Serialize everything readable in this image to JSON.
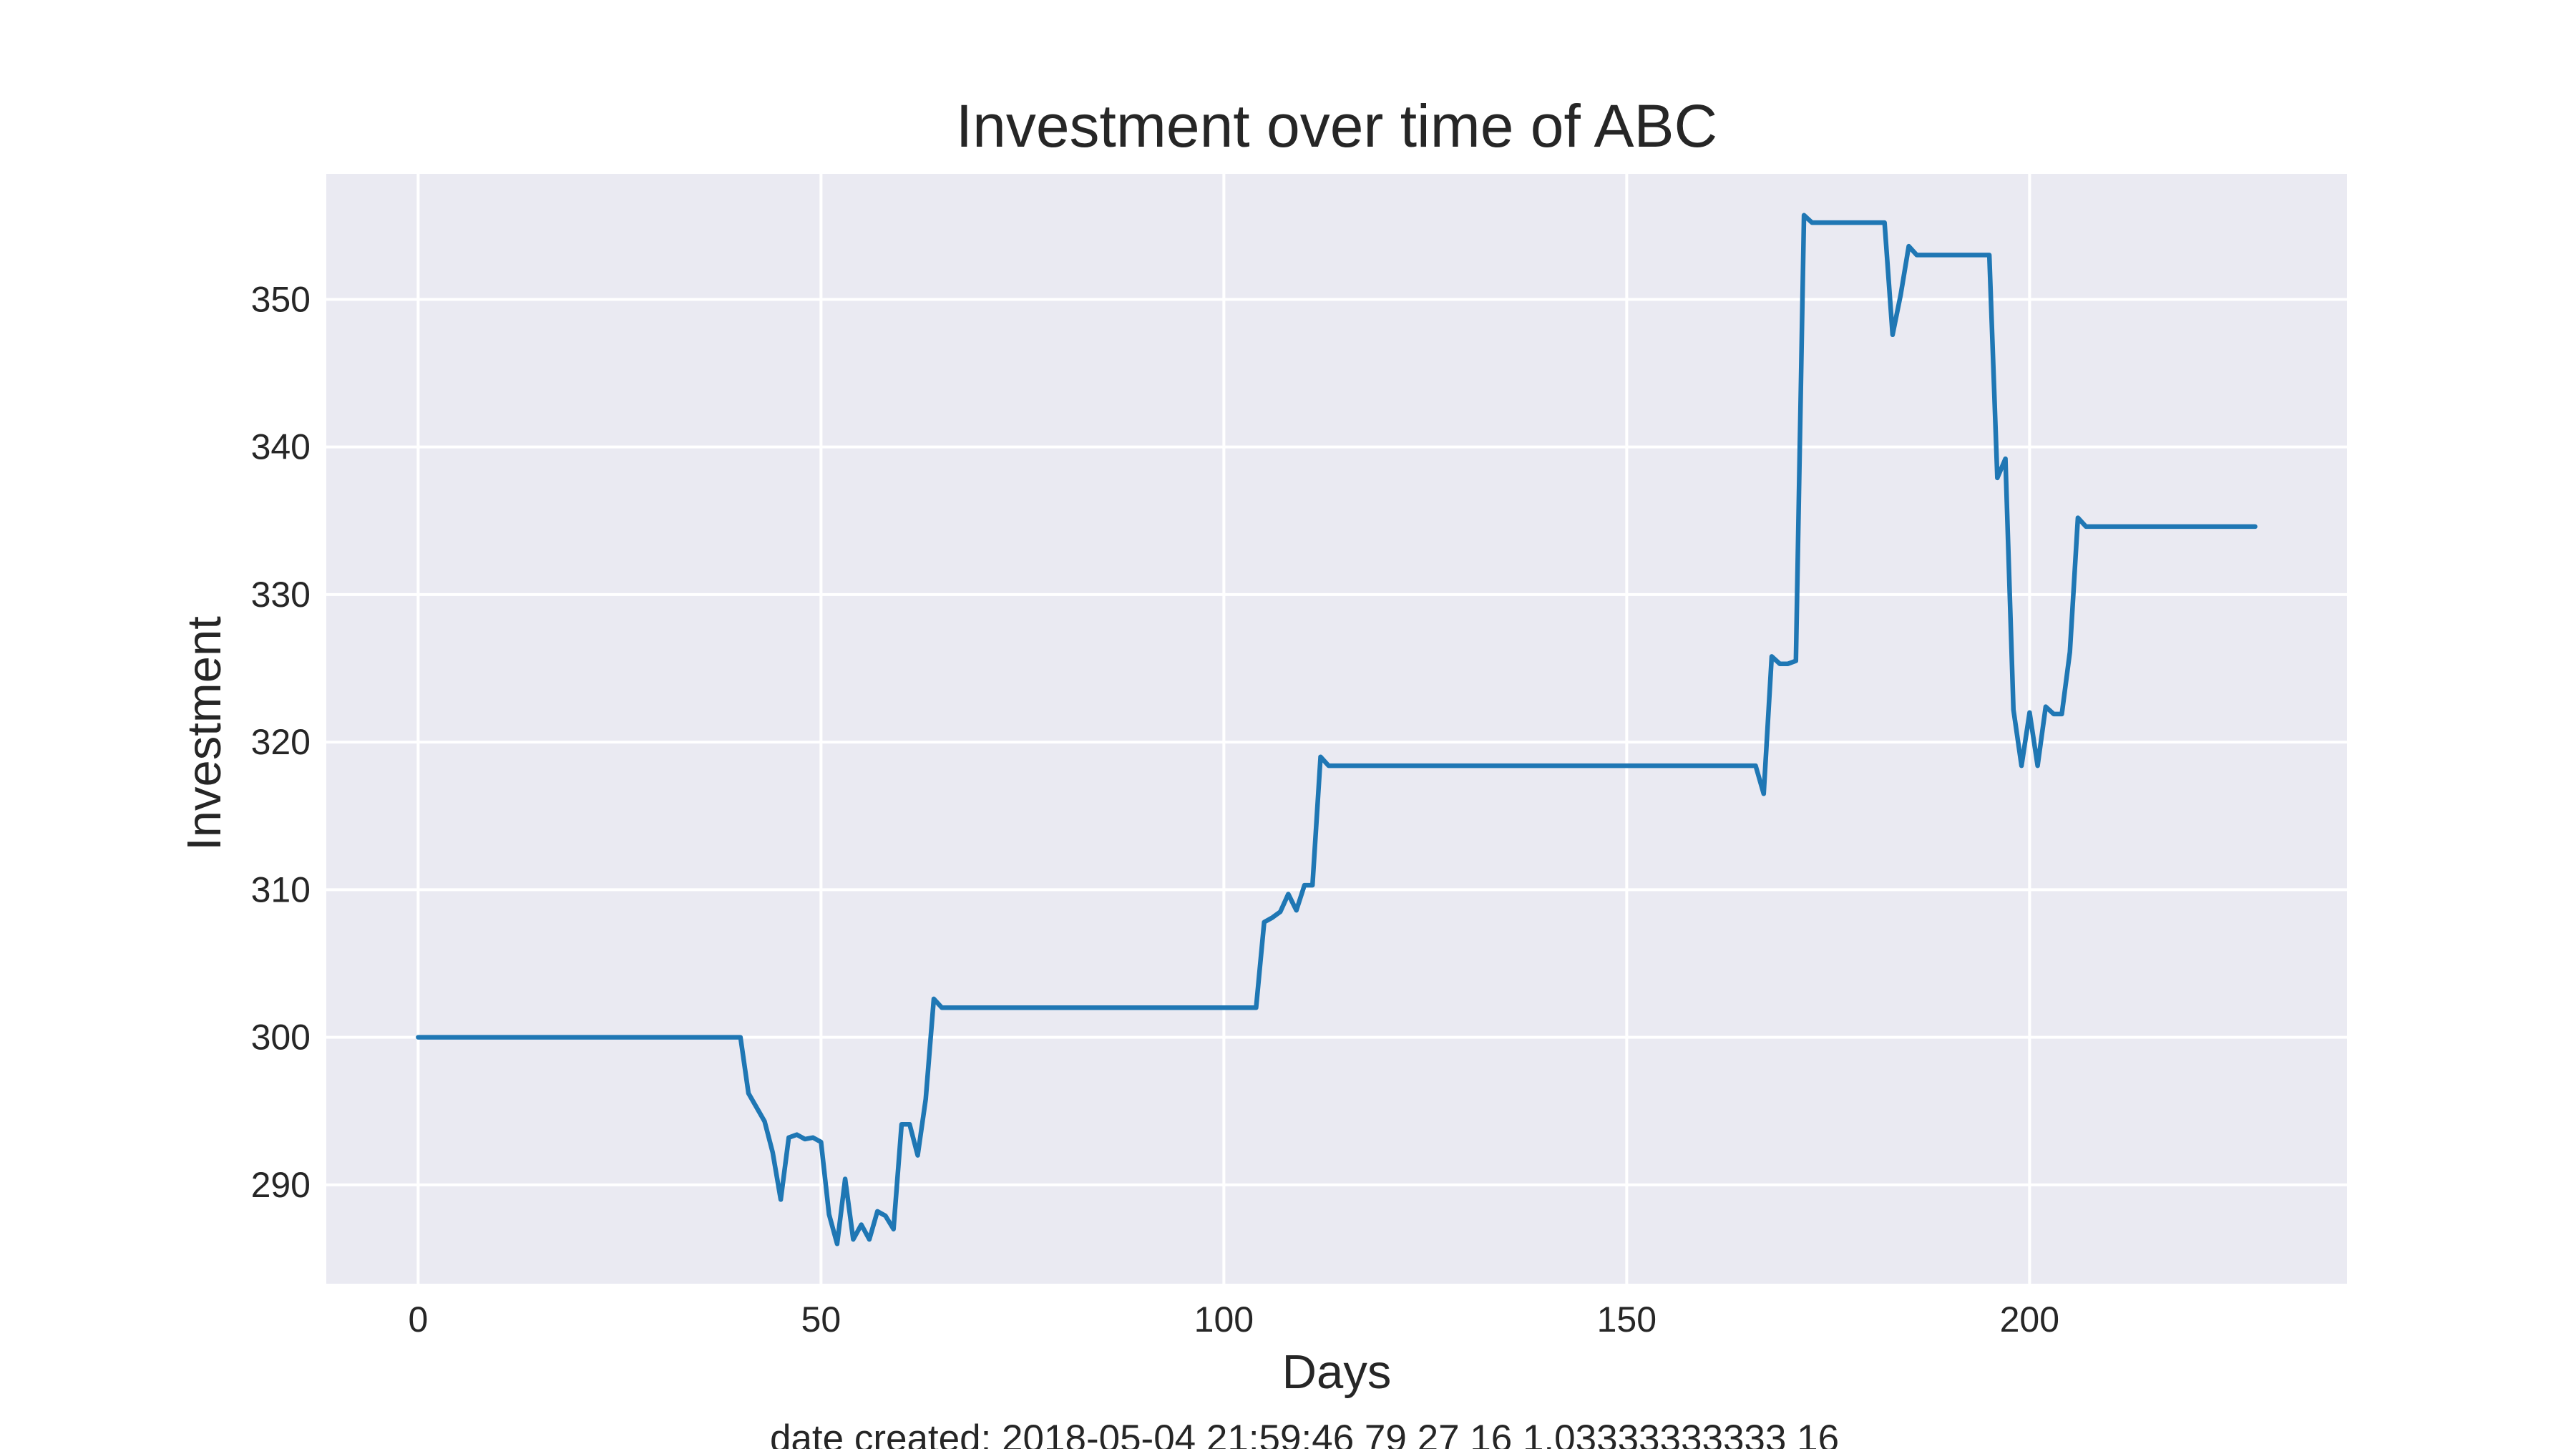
{
  "chart_data": {
    "type": "line",
    "title": "Investment over time of ABC",
    "xlabel": "Days",
    "ylabel": "Investment",
    "footer": "date created: 2018-05-04 21:59:46 79 27 16 1.03333333333 16",
    "xlim": [
      -11.4,
      239.4
    ],
    "ylim": [
      283.3,
      358.5
    ],
    "xticks": [
      0,
      50,
      100,
      150,
      200
    ],
    "yticks": [
      290,
      300,
      310,
      320,
      330,
      340,
      350
    ],
    "grid": true,
    "legend": "none",
    "colors": {
      "plot_bg": "#eaeaf2",
      "grid": "#ffffff",
      "line": "#1f77b4"
    },
    "series": [
      {
        "x": [
          0,
          40,
          41,
          43,
          44,
          45,
          46,
          47,
          48,
          49,
          50,
          51,
          52,
          53,
          54,
          55,
          56,
          57,
          58,
          59,
          60,
          61,
          62,
          63,
          64,
          65,
          104,
          105,
          106,
          107,
          108,
          109,
          110,
          111,
          112,
          113,
          114,
          166,
          167,
          168,
          169,
          170,
          171,
          172,
          173,
          182,
          183,
          184,
          185,
          186,
          195,
          196,
          197,
          198,
          199,
          200,
          201,
          202,
          203,
          204,
          205,
          206,
          207,
          228
        ],
        "y": [
          300,
          300,
          296.2,
          294.3,
          292.2,
          289,
          293.2,
          293.4,
          293.1,
          293.2,
          292.9,
          288,
          286,
          290.4,
          286.3,
          287.3,
          286.3,
          288.2,
          287.9,
          287,
          294.1,
          294.1,
          292,
          295.8,
          302.6,
          302,
          302,
          307.8,
          308.1,
          308.5,
          309.7,
          308.6,
          310.3,
          310.3,
          319,
          318.4,
          318.4,
          318.4,
          316.5,
          325.8,
          325.3,
          325.3,
          325.5,
          355.7,
          355.2,
          355.2,
          347.6,
          350.3,
          353.6,
          353,
          353,
          337.9,
          339.2,
          322.2,
          318.4,
          322,
          318.4,
          322.4,
          321.9,
          321.9,
          326.1,
          335.2,
          334.6,
          334.6
        ]
      }
    ]
  }
}
